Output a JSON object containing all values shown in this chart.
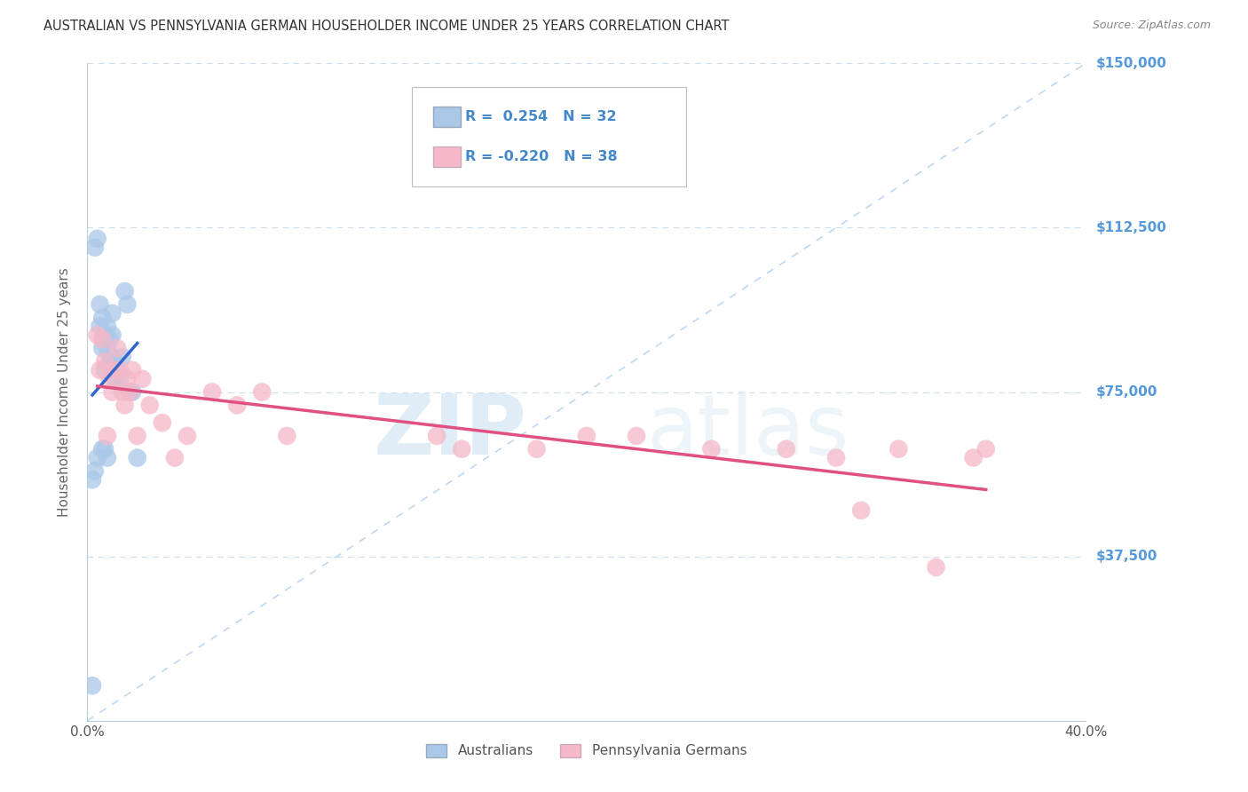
{
  "title": "AUSTRALIAN VS PENNSYLVANIA GERMAN HOUSEHOLDER INCOME UNDER 25 YEARS CORRELATION CHART",
  "source": "Source: ZipAtlas.com",
  "ylabel": "Householder Income Under 25 years",
  "ylim": [
    0,
    150000
  ],
  "xlim": [
    0,
    0.4
  ],
  "yticks": [
    0,
    37500,
    75000,
    112500,
    150000
  ],
  "ytick_labels": [
    "",
    "$37,500",
    "$75,000",
    "$112,500",
    "$150,000"
  ],
  "xticks": [
    0.0,
    0.05,
    0.1,
    0.15,
    0.2,
    0.25,
    0.3,
    0.35,
    0.4
  ],
  "xtick_labels": [
    "0.0%",
    "",
    "",
    "",
    "",
    "",
    "",
    "",
    "40.0%"
  ],
  "blue_color": "#aac8e8",
  "pink_color": "#f4b8c8",
  "blue_line_color": "#3366cc",
  "pink_line_color": "#e05080",
  "dashed_line_color": "#b8d4ee",
  "legend_R_blue": "0.254",
  "legend_N_blue": "32",
  "legend_R_pink": "-0.220",
  "legend_N_pink": "38",
  "legend_label_blue": "Australians",
  "legend_label_pink": "Pennsylvania Germans",
  "watermark_zip": "ZIP",
  "watermark_atlas": "atlas",
  "blue_x": [
    0.002,
    0.003,
    0.004,
    0.005,
    0.005,
    0.006,
    0.006,
    0.007,
    0.007,
    0.008,
    0.008,
    0.009,
    0.009,
    0.01,
    0.01,
    0.01,
    0.011,
    0.011,
    0.012,
    0.013,
    0.014,
    0.015,
    0.016,
    0.017,
    0.018,
    0.002,
    0.003,
    0.004,
    0.006,
    0.007,
    0.008,
    0.02
  ],
  "blue_y": [
    8000,
    108000,
    110000,
    90000,
    95000,
    85000,
    92000,
    80000,
    88000,
    85000,
    90000,
    82000,
    87000,
    83000,
    88000,
    93000,
    82000,
    78000,
    80000,
    78000,
    83000,
    98000,
    95000,
    75000,
    75000,
    55000,
    57000,
    60000,
    62000,
    62000,
    60000,
    60000
  ],
  "pink_x": [
    0.004,
    0.005,
    0.006,
    0.007,
    0.008,
    0.009,
    0.01,
    0.011,
    0.012,
    0.013,
    0.014,
    0.015,
    0.016,
    0.017,
    0.018,
    0.02,
    0.022,
    0.025,
    0.03,
    0.035,
    0.04,
    0.05,
    0.06,
    0.07,
    0.08,
    0.14,
    0.15,
    0.18,
    0.2,
    0.22,
    0.25,
    0.28,
    0.3,
    0.31,
    0.325,
    0.34,
    0.355,
    0.36
  ],
  "pink_y": [
    88000,
    80000,
    87000,
    82000,
    65000,
    78000,
    75000,
    80000,
    85000,
    80000,
    75000,
    72000,
    78000,
    75000,
    80000,
    65000,
    78000,
    72000,
    68000,
    60000,
    65000,
    75000,
    72000,
    75000,
    65000,
    65000,
    62000,
    62000,
    65000,
    65000,
    62000,
    62000,
    60000,
    48000,
    62000,
    35000,
    60000,
    62000
  ]
}
